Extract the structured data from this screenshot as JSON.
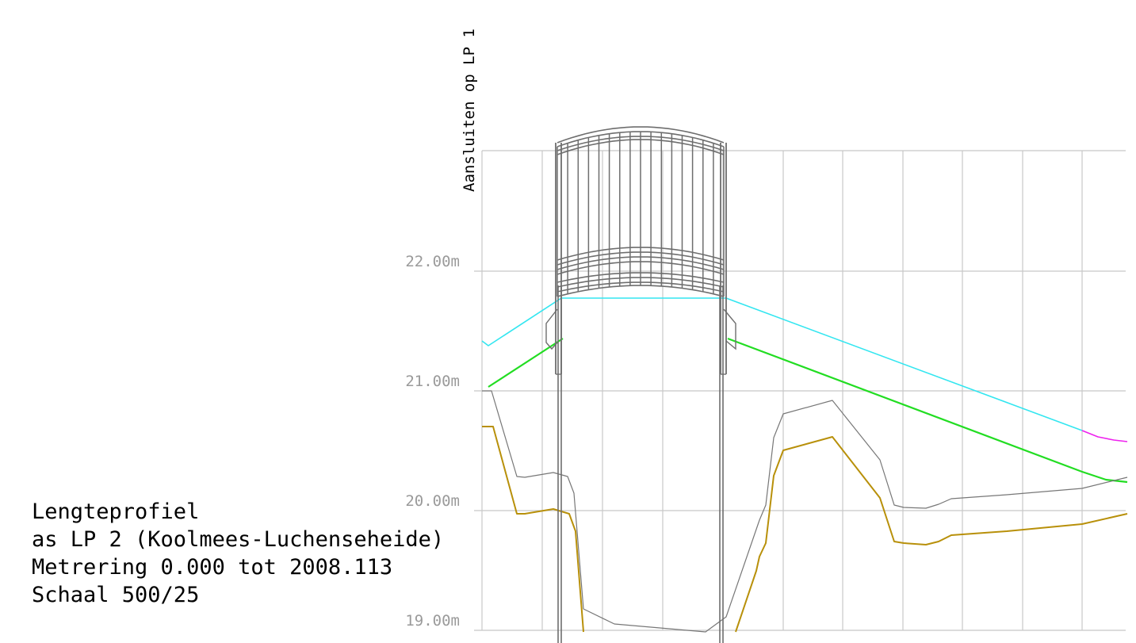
{
  "levels": [
    {
      "label": "22.00m",
      "value": 22.0
    },
    {
      "label": "21.00m",
      "value": 21.0
    },
    {
      "label": "20.00m",
      "value": 20.0
    },
    {
      "label": "19.00m",
      "value": 19.0
    }
  ],
  "connect_note": "Aansluiten op LP 1",
  "title_block": {
    "line1": "Lengteprofiel",
    "line2": "as LP 2 (Koolmees-Luchenseheide)",
    "line3": "Metrering 0.000 tot 2008.113",
    "line4": "Schaal 500/25"
  },
  "colors": {
    "grid": "#c8c8c8",
    "structure": "#6e6e6e",
    "cyan_line": "#33e6f0",
    "green_line": "#22dd22",
    "magenta_line": "#ee22ee",
    "gray_profile": "#777777",
    "gold_profile": "#b8900a"
  },
  "icons": {
    "structure": "bridge-arch-grid"
  }
}
